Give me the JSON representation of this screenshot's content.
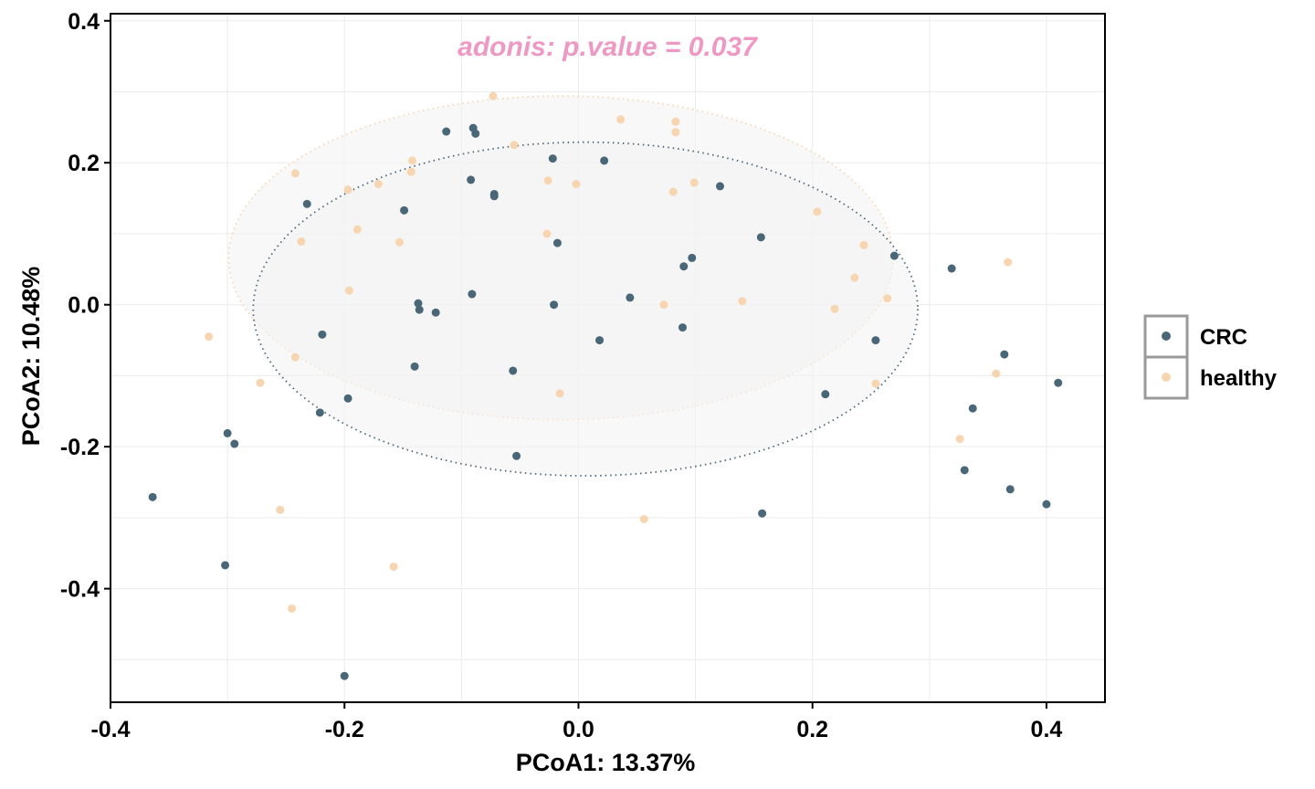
{
  "chart_data": {
    "type": "scatter",
    "title": "",
    "annotation": "adonis: p.value =  0.037",
    "xlabel": "PCoA1: 13.37%",
    "ylabel": "PCoA2: 10.48%",
    "xlim": [
      -0.4,
      0.45
    ],
    "ylim": [
      -0.56,
      0.41
    ],
    "x_ticks": [
      -0.4,
      -0.2,
      0.0,
      0.2,
      0.4
    ],
    "x_tick_labels": [
      "-0.4",
      "-0.2",
      "0.0",
      "0.2",
      "0.4"
    ],
    "y_ticks": [
      -0.4,
      -0.2,
      0.0,
      0.2,
      0.4
    ],
    "y_tick_labels": [
      "-0.4",
      "-0.2",
      "0.0",
      "0.2",
      "0.4"
    ],
    "grid": true,
    "legend_position": "right",
    "colors": {
      "CRC": "#4a6778",
      "healthy": "#f6d5b0",
      "annotation": "#ee99c4",
      "ellipse_fill": "#f3f3f3"
    },
    "series": [
      {
        "name": "CRC",
        "x": [
          -0.364,
          -0.3,
          -0.302,
          -0.294,
          -0.232,
          -0.219,
          -0.221,
          -0.197,
          -0.2,
          -0.149,
          -0.14,
          -0.137,
          -0.136,
          -0.122,
          -0.113,
          -0.092,
          -0.091,
          -0.09,
          -0.088,
          -0.072,
          -0.072,
          -0.056,
          -0.053,
          -0.022,
          -0.021,
          -0.018,
          0.018,
          0.022,
          0.044,
          0.09,
          0.089,
          0.097,
          0.121,
          0.156,
          0.157,
          0.211,
          0.254,
          0.27,
          0.319,
          0.337,
          0.33,
          0.364,
          0.369,
          0.4,
          0.41
        ],
        "y": [
          -0.271,
          -0.181,
          -0.367,
          -0.196,
          0.142,
          -0.042,
          -0.152,
          -0.132,
          -0.523,
          0.133,
          -0.087,
          0.002,
          -0.007,
          -0.011,
          0.244,
          0.176,
          0.015,
          0.249,
          0.241,
          0.156,
          0.153,
          -0.093,
          -0.213,
          0.206,
          0.0,
          0.087,
          -0.05,
          0.203,
          0.01,
          0.054,
          -0.032,
          0.066,
          0.167,
          0.095,
          -0.294,
          -0.126,
          -0.05,
          0.069,
          0.051,
          -0.146,
          -0.233,
          -0.07,
          -0.26,
          -0.281,
          -0.11
        ]
      },
      {
        "name": "healthy",
        "x": [
          -0.316,
          -0.272,
          -0.255,
          -0.245,
          -0.242,
          -0.242,
          -0.237,
          -0.197,
          -0.196,
          -0.189,
          -0.171,
          -0.158,
          -0.153,
          -0.143,
          -0.142,
          -0.073,
          -0.055,
          -0.027,
          -0.026,
          -0.016,
          -0.002,
          0.036,
          0.056,
          0.073,
          0.081,
          0.083,
          0.083,
          0.099,
          0.14,
          0.204,
          0.219,
          0.236,
          0.244,
          0.254,
          0.264,
          0.326,
          0.357,
          0.367
        ],
        "y": [
          -0.045,
          -0.11,
          -0.289,
          -0.428,
          0.185,
          -0.074,
          0.089,
          0.162,
          0.02,
          0.106,
          0.17,
          -0.369,
          0.088,
          0.187,
          0.203,
          0.294,
          0.225,
          0.1,
          0.175,
          -0.125,
          0.17,
          0.261,
          -0.302,
          0.0,
          0.159,
          0.258,
          0.243,
          0.172,
          0.005,
          0.131,
          -0.006,
          0.038,
          0.084,
          -0.111,
          0.009,
          -0.189,
          -0.097,
          0.06
        ]
      }
    ],
    "ellipses": [
      {
        "group": "healthy",
        "cx": -0.015,
        "cy": 0.066,
        "rx": 0.284,
        "ry": 0.228
      },
      {
        "group": "CRC",
        "cx": 0.006,
        "cy": -0.006,
        "rx": 0.284,
        "ry": 0.235
      }
    ]
  }
}
